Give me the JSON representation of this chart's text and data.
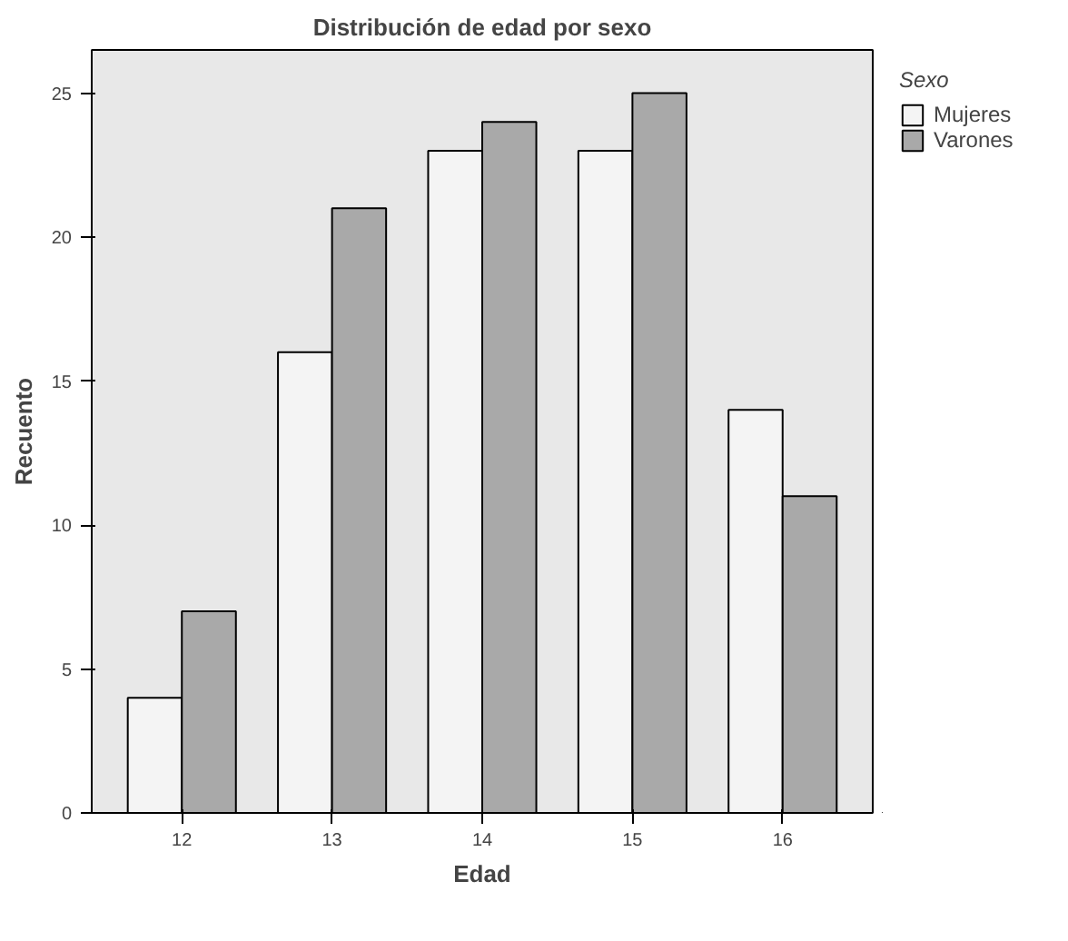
{
  "chart_data": {
    "type": "bar",
    "title": "Distribución de edad por sexo",
    "xlabel": "Edad",
    "ylabel": "Recuento",
    "legend_title": "Sexo",
    "categories": [
      "12",
      "13",
      "14",
      "15",
      "16"
    ],
    "series": [
      {
        "name": "Mujeres",
        "color": "#f4f4f4",
        "values": [
          4,
          16,
          23,
          23,
          14
        ]
      },
      {
        "name": "Varones",
        "color": "#a9a9a9",
        "values": [
          7,
          21,
          24,
          25,
          11
        ]
      }
    ],
    "ylim": [
      0,
      26.5
    ],
    "yticks": [
      0,
      5,
      10,
      15,
      20,
      25
    ],
    "grid": false,
    "legend": "top right"
  }
}
